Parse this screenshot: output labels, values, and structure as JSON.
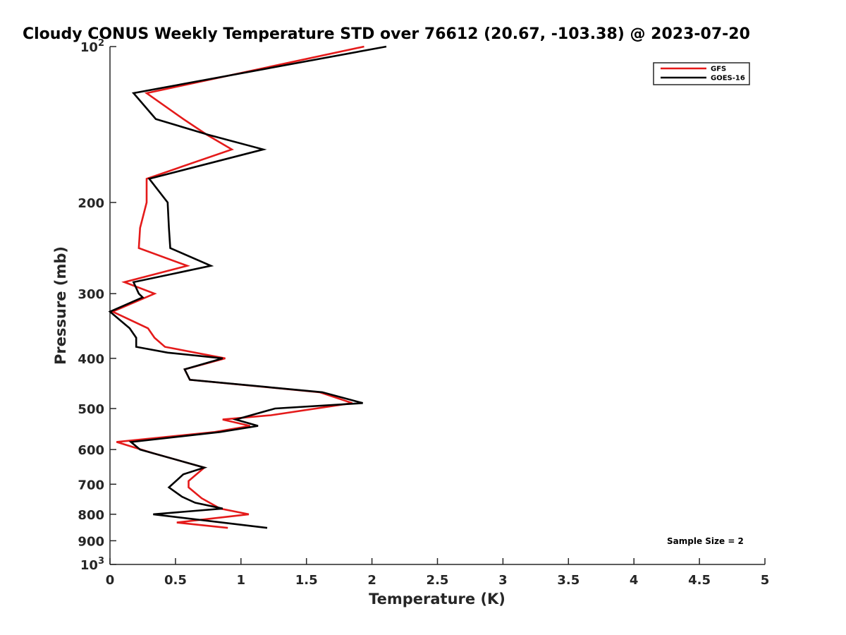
{
  "chart_data": {
    "type": "line",
    "title": "Cloudy CONUS Weekly Temperature STD over 76612 (20.67, -103.38) @ 2023-07-20",
    "xlabel": "Temperature (K)",
    "ylabel": "Pressure (mb)",
    "xlim": [
      0,
      5
    ],
    "ylim": [
      100,
      1000
    ],
    "yscale": "log",
    "y_reversed": true,
    "x_ticks": [
      "0",
      "0.5",
      "1",
      "1.5",
      "2",
      "2.5",
      "3",
      "3.5",
      "4",
      "4.5",
      "5"
    ],
    "x_tick_values": [
      0,
      0.5,
      1,
      1.5,
      2,
      2.5,
      3,
      3.5,
      4,
      4.5,
      5
    ],
    "y_ticks": [
      {
        "value": 100,
        "base": "10",
        "exp": "2"
      },
      {
        "value": 200,
        "label": "200"
      },
      {
        "value": 300,
        "label": "300"
      },
      {
        "value": 400,
        "label": "400"
      },
      {
        "value": 500,
        "label": "500"
      },
      {
        "value": 600,
        "label": "600"
      },
      {
        "value": 700,
        "label": "700"
      },
      {
        "value": 800,
        "label": "800"
      },
      {
        "value": 900,
        "label": "900"
      },
      {
        "value": 1000,
        "base": "10",
        "exp": "3"
      }
    ],
    "legend_position": "top-right",
    "annotation": "Sample Size = 2",
    "series": [
      {
        "name": "GFS",
        "color": "#e41a1a",
        "x": [
          1.94,
          0.28,
          0.56,
          0.74,
          0.93,
          0.28,
          0.28,
          0.23,
          0.22,
          0.59,
          0.11,
          0.34,
          0.02,
          0.29,
          0.34,
          0.42,
          0.88,
          0.57,
          0.61,
          1.6,
          1.85,
          1.23,
          0.86,
          1.07,
          0.8,
          0.05,
          0.33,
          0.72,
          0.6,
          0.6,
          0.7,
          0.84,
          1.06,
          0.51,
          0.9
        ],
        "y": [
          100,
          123,
          138,
          148,
          158,
          180,
          200,
          224,
          245,
          265,
          285,
          300,
          325,
          350,
          365,
          380,
          400,
          420,
          440,
          465,
          488,
          515,
          525,
          540,
          555,
          580,
          610,
          650,
          690,
          710,
          745,
          780,
          800,
          830,
          850
        ]
      },
      {
        "name": "GOES-16",
        "color": "#000000",
        "x": [
          2.11,
          0.18,
          0.35,
          0.75,
          1.17,
          0.3,
          0.44,
          0.45,
          0.46,
          0.77,
          0.18,
          0.22,
          0.25,
          0.0,
          0.15,
          0.2,
          0.2,
          0.44,
          0.86,
          0.57,
          0.61,
          1.62,
          1.93,
          1.26,
          0.96,
          1.13,
          0.84,
          0.16,
          0.23,
          0.72,
          0.56,
          0.45,
          0.55,
          0.65,
          0.86,
          0.33,
          1.2
        ],
        "y": [
          100,
          123,
          138,
          148,
          158,
          180,
          200,
          224,
          245,
          265,
          285,
          300,
          305,
          325,
          350,
          365,
          380,
          390,
          400,
          420,
          440,
          465,
          488,
          500,
          525,
          540,
          555,
          580,
          600,
          650,
          670,
          710,
          740,
          760,
          780,
          800,
          850
        ]
      }
    ]
  }
}
